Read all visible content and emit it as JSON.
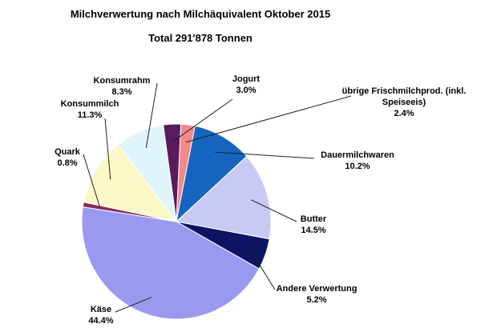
{
  "chart_data": {
    "type": "pie",
    "title": "Milchverwertung nach Milchäquivalent Oktober 2015",
    "subtitle": "Total 291'878 Tonnen",
    "slices": [
      {
        "label": "Jogurt",
        "line2": "",
        "value_label": "3.0%",
        "value": 3.0,
        "color": "#5a1a5e"
      },
      {
        "label": "übrige Frischmilchprod. (inkl.",
        "line2": "Speiseeis)",
        "value_label": "2.4%",
        "value": 2.4,
        "color": "#f28a8a"
      },
      {
        "label": "Dauermilchwaren",
        "line2": "",
        "value_label": "10.2%",
        "value": 10.2,
        "color": "#1565c0"
      },
      {
        "label": "Butter",
        "line2": "",
        "value_label": "14.5%",
        "value": 14.5,
        "color": "#c9c9f5"
      },
      {
        "label": "Andere Verwertung",
        "line2": "",
        "value_label": "5.2%",
        "value": 5.2,
        "color": "#0d1463"
      },
      {
        "label": "Käse",
        "line2": "",
        "value_label": "44.4%",
        "value": 44.4,
        "color": "#9999f0"
      },
      {
        "label": "Quark",
        "line2": "",
        "value_label": "0.8%",
        "value": 0.8,
        "color": "#8b2a5a"
      },
      {
        "label": "Konsummilch",
        "line2": "",
        "value_label": "11.3%",
        "value": 11.3,
        "color": "#fbf8c8"
      },
      {
        "label": "Konsumrahm",
        "line2": "",
        "value_label": "8.3%",
        "value": 8.3,
        "color": "#dff4fb"
      }
    ]
  }
}
